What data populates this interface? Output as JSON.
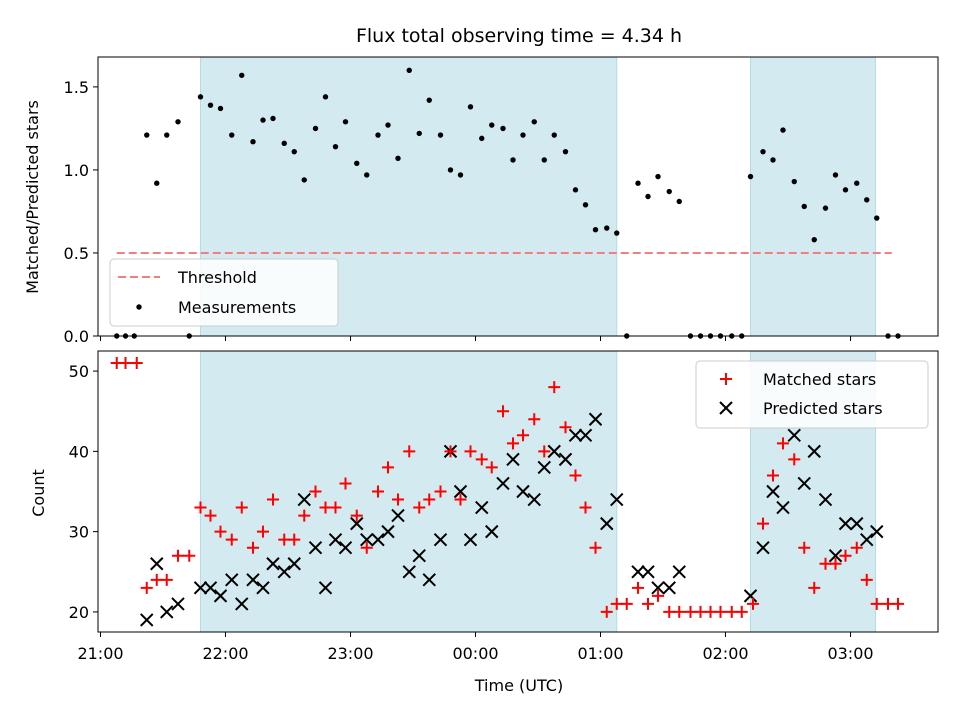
{
  "chart_data": {
    "type": "scatter",
    "title": "Flux total observing time = 4.34 h",
    "xlabel": "Time (UTC)",
    "x_ticks": [
      {
        "t": 21.0,
        "label": "21:00"
      },
      {
        "t": 22.0,
        "label": "22:00"
      },
      {
        "t": 23.0,
        "label": "23:00"
      },
      {
        "t": 24.0,
        "label": "00:00"
      },
      {
        "t": 25.0,
        "label": "01:00"
      },
      {
        "t": 26.0,
        "label": "02:00"
      },
      {
        "t": 27.0,
        "label": "03:00"
      }
    ],
    "xlim": [
      20.98,
      27.7
    ],
    "shaded_intervals": [
      [
        21.8,
        25.13
      ],
      [
        26.2,
        27.2
      ]
    ],
    "shade_color": "#d3eaf1",
    "top": {
      "ylabel": "Matched/Predicted stars",
      "ylim": [
        0,
        1.68
      ],
      "y_ticks": [
        0.0,
        0.5,
        1.0,
        1.5
      ],
      "y_tick_labels": [
        "0.0",
        "0.5",
        "1.0",
        "1.5"
      ],
      "legend": {
        "placement": "lower-left",
        "threshold_label": "Threshold",
        "measurements_label": "Measurements"
      },
      "threshold": {
        "value": 0.5,
        "x_range": [
          21.13,
          27.33
        ],
        "color": "#f08080"
      },
      "measurements": [
        [
          21.13,
          0.0
        ],
        [
          21.2,
          0.0
        ],
        [
          21.27,
          0.0
        ],
        [
          21.37,
          1.21
        ],
        [
          21.45,
          0.92
        ],
        [
          21.53,
          1.21
        ],
        [
          21.62,
          1.29
        ],
        [
          21.71,
          0.0
        ],
        [
          21.8,
          1.44
        ],
        [
          21.88,
          1.39
        ],
        [
          21.96,
          1.37
        ],
        [
          22.05,
          1.21
        ],
        [
          22.13,
          1.57
        ],
        [
          22.22,
          1.17
        ],
        [
          22.3,
          1.3
        ],
        [
          22.38,
          1.31
        ],
        [
          22.47,
          1.16
        ],
        [
          22.55,
          1.11
        ],
        [
          22.63,
          0.94
        ],
        [
          22.72,
          1.25
        ],
        [
          22.8,
          1.44
        ],
        [
          22.88,
          1.14
        ],
        [
          22.96,
          1.29
        ],
        [
          23.05,
          1.04
        ],
        [
          23.13,
          0.97
        ],
        [
          23.22,
          1.21
        ],
        [
          23.3,
          1.27
        ],
        [
          23.38,
          1.07
        ],
        [
          23.47,
          1.6
        ],
        [
          23.55,
          1.22
        ],
        [
          23.63,
          1.42
        ],
        [
          23.72,
          1.21
        ],
        [
          23.8,
          1.0
        ],
        [
          23.88,
          0.97
        ],
        [
          23.96,
          1.38
        ],
        [
          24.05,
          1.19
        ],
        [
          24.13,
          1.27
        ],
        [
          24.22,
          1.25
        ],
        [
          24.3,
          1.06
        ],
        [
          24.38,
          1.21
        ],
        [
          24.47,
          1.29
        ],
        [
          24.55,
          1.06
        ],
        [
          24.63,
          1.21
        ],
        [
          24.72,
          1.11
        ],
        [
          24.8,
          0.88
        ],
        [
          24.88,
          0.79
        ],
        [
          24.96,
          0.64
        ],
        [
          25.05,
          0.65
        ],
        [
          25.13,
          0.62
        ],
        [
          25.21,
          0.0
        ],
        [
          25.3,
          0.92
        ],
        [
          25.38,
          0.84
        ],
        [
          25.46,
          0.96
        ],
        [
          25.55,
          0.87
        ],
        [
          25.63,
          0.81
        ],
        [
          25.72,
          0.0
        ],
        [
          25.8,
          0.0
        ],
        [
          25.88,
          0.0
        ],
        [
          25.96,
          0.0
        ],
        [
          26.05,
          0.0
        ],
        [
          26.13,
          0.0
        ],
        [
          26.2,
          0.96
        ],
        [
          26.3,
          1.11
        ],
        [
          26.38,
          1.06
        ],
        [
          26.46,
          1.24
        ],
        [
          26.55,
          0.93
        ],
        [
          26.63,
          0.78
        ],
        [
          26.71,
          0.58
        ],
        [
          26.8,
          0.77
        ],
        [
          26.88,
          0.97
        ],
        [
          26.96,
          0.88
        ],
        [
          27.05,
          0.92
        ],
        [
          27.13,
          0.82
        ],
        [
          27.21,
          0.71
        ],
        [
          27.3,
          0.0
        ],
        [
          27.38,
          0.0
        ]
      ]
    },
    "bottom": {
      "ylabel": "Count",
      "ylim": [
        17.5,
        52.5
      ],
      "y_ticks": [
        20,
        30,
        40,
        50
      ],
      "y_tick_labels": [
        "20",
        "30",
        "40",
        "50"
      ],
      "legend": {
        "placement": "top-right",
        "matched_label": "Matched stars",
        "predicted_label": "Predicted stars"
      },
      "matched": [
        [
          21.13,
          51
        ],
        [
          21.2,
          51
        ],
        [
          21.29,
          51
        ],
        [
          21.37,
          23
        ],
        [
          21.45,
          24
        ],
        [
          21.53,
          24
        ],
        [
          21.62,
          27
        ],
        [
          21.71,
          27
        ],
        [
          21.8,
          33
        ],
        [
          21.88,
          32
        ],
        [
          21.96,
          30
        ],
        [
          22.05,
          29
        ],
        [
          22.13,
          33
        ],
        [
          22.22,
          28
        ],
        [
          22.3,
          30
        ],
        [
          22.38,
          34
        ],
        [
          22.47,
          29
        ],
        [
          22.55,
          29
        ],
        [
          22.63,
          32
        ],
        [
          22.72,
          35
        ],
        [
          22.8,
          33
        ],
        [
          22.88,
          33
        ],
        [
          22.96,
          36
        ],
        [
          23.05,
          32
        ],
        [
          23.13,
          28
        ],
        [
          23.22,
          35
        ],
        [
          23.3,
          38
        ],
        [
          23.38,
          34
        ],
        [
          23.47,
          40
        ],
        [
          23.55,
          33
        ],
        [
          23.63,
          34
        ],
        [
          23.72,
          35
        ],
        [
          23.8,
          40
        ],
        [
          23.88,
          34
        ],
        [
          23.96,
          40
        ],
        [
          24.05,
          39
        ],
        [
          24.13,
          38
        ],
        [
          24.22,
          45
        ],
        [
          24.3,
          41
        ],
        [
          24.38,
          42
        ],
        [
          24.47,
          44
        ],
        [
          24.55,
          40
        ],
        [
          24.63,
          48
        ],
        [
          24.72,
          43
        ],
        [
          24.8,
          37
        ],
        [
          24.88,
          33
        ],
        [
          24.96,
          28
        ],
        [
          25.05,
          20
        ],
        [
          25.13,
          21
        ],
        [
          25.21,
          21
        ],
        [
          25.3,
          23
        ],
        [
          25.38,
          21
        ],
        [
          25.46,
          22
        ],
        [
          25.55,
          20
        ],
        [
          25.63,
          20
        ],
        [
          25.72,
          20
        ],
        [
          25.8,
          20
        ],
        [
          25.88,
          20
        ],
        [
          25.96,
          20
        ],
        [
          26.05,
          20
        ],
        [
          26.13,
          20
        ],
        [
          26.22,
          21
        ],
        [
          26.3,
          31
        ],
        [
          26.38,
          37
        ],
        [
          26.46,
          41
        ],
        [
          26.55,
          39
        ],
        [
          26.63,
          28
        ],
        [
          26.71,
          23
        ],
        [
          26.8,
          26
        ],
        [
          26.88,
          26
        ],
        [
          26.96,
          27
        ],
        [
          27.05,
          28
        ],
        [
          27.13,
          24
        ],
        [
          27.21,
          21
        ],
        [
          27.3,
          21
        ],
        [
          27.38,
          21
        ]
      ],
      "predicted": [
        [
          21.37,
          19
        ],
        [
          21.45,
          26
        ],
        [
          21.53,
          20
        ],
        [
          21.62,
          21
        ],
        [
          21.8,
          23
        ],
        [
          21.88,
          23
        ],
        [
          21.96,
          22
        ],
        [
          22.05,
          24
        ],
        [
          22.13,
          21
        ],
        [
          22.22,
          24
        ],
        [
          22.3,
          23
        ],
        [
          22.38,
          26
        ],
        [
          22.47,
          25
        ],
        [
          22.55,
          26
        ],
        [
          22.63,
          34
        ],
        [
          22.72,
          28
        ],
        [
          22.8,
          23
        ],
        [
          22.88,
          29
        ],
        [
          22.96,
          28
        ],
        [
          23.05,
          31
        ],
        [
          23.13,
          29
        ],
        [
          23.22,
          29
        ],
        [
          23.3,
          30
        ],
        [
          23.38,
          32
        ],
        [
          23.47,
          25
        ],
        [
          23.55,
          27
        ],
        [
          23.63,
          24
        ],
        [
          23.72,
          29
        ],
        [
          23.8,
          40
        ],
        [
          23.88,
          35
        ],
        [
          23.96,
          29
        ],
        [
          24.05,
          33
        ],
        [
          24.13,
          30
        ],
        [
          24.22,
          36
        ],
        [
          24.3,
          39
        ],
        [
          24.38,
          35
        ],
        [
          24.47,
          34
        ],
        [
          24.55,
          38
        ],
        [
          24.63,
          40
        ],
        [
          24.72,
          39
        ],
        [
          24.8,
          42
        ],
        [
          24.88,
          42
        ],
        [
          24.96,
          44
        ],
        [
          25.05,
          31
        ],
        [
          25.13,
          34
        ],
        [
          25.3,
          25
        ],
        [
          25.38,
          25
        ],
        [
          25.46,
          23
        ],
        [
          25.55,
          23
        ],
        [
          25.63,
          25
        ],
        [
          26.2,
          22
        ],
        [
          26.3,
          28
        ],
        [
          26.38,
          35
        ],
        [
          26.46,
          33
        ],
        [
          26.55,
          42
        ],
        [
          26.63,
          36
        ],
        [
          26.71,
          40
        ],
        [
          26.8,
          34
        ],
        [
          26.88,
          27
        ],
        [
          26.96,
          31
        ],
        [
          27.05,
          31
        ],
        [
          27.13,
          29
        ],
        [
          27.21,
          30
        ]
      ]
    }
  }
}
